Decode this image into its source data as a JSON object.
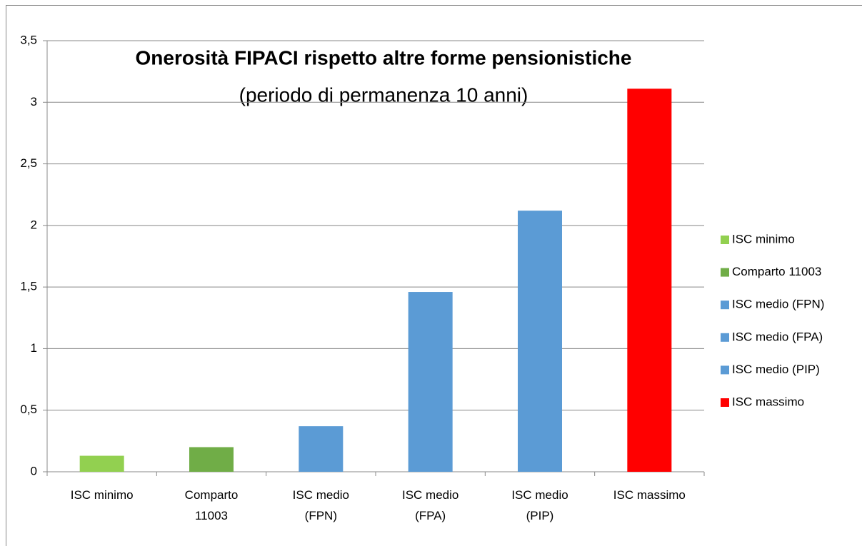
{
  "chart_data": {
    "type": "bar",
    "title": "Onerosità FIPACI rispetto altre forme pensionistiche",
    "subtitle": "(periodo di permanenza 10 anni)",
    "categories": [
      "ISC minimo",
      "Comparto 11003",
      "ISC medio (FPN)",
      "ISC medio (FPA)",
      "ISC medio (PIP)",
      "ISC massimo"
    ],
    "values": [
      0.13,
      0.2,
      0.37,
      1.46,
      2.12,
      3.11
    ],
    "colors": [
      "#92d050",
      "#70ad47",
      "#5b9bd5",
      "#5b9bd5",
      "#5b9bd5",
      "#ff0000"
    ],
    "ylim": [
      0,
      3.5
    ],
    "yticks": [
      0,
      {
        "value": 0.5,
        "label": "0,5"
      },
      1,
      {
        "value": 1.5,
        "label": "1,5"
      },
      2,
      {
        "value": 2.5,
        "label": "2,5"
      },
      3,
      {
        "value": 3.5,
        "label": "3,5"
      }
    ],
    "grid": true,
    "legend": "right"
  }
}
